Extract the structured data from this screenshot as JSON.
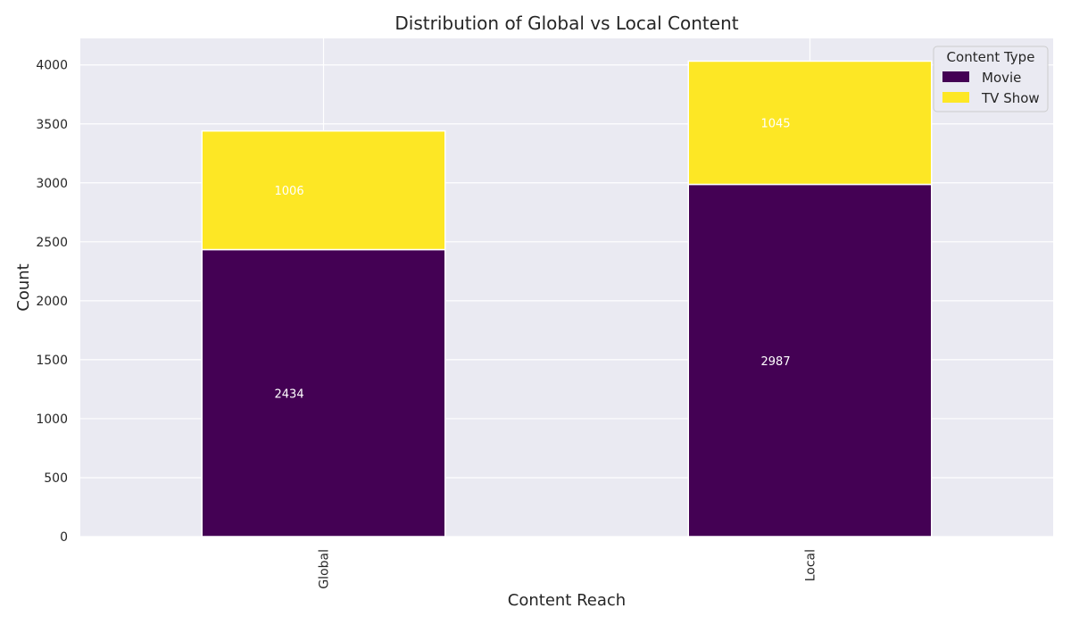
{
  "chart_data": {
    "type": "bar",
    "stacked": true,
    "title": "Distribution of Global vs Local Content",
    "xlabel": "Content Reach",
    "ylabel": "Count",
    "categories": [
      "Global",
      "Local"
    ],
    "series": [
      {
        "name": "Movie",
        "values": [
          2434,
          2987
        ],
        "color": "#440154"
      },
      {
        "name": "TV Show",
        "values": [
          1006,
          1045
        ],
        "color": "#fde725"
      }
    ],
    "ylim": [
      0,
      4225
    ],
    "yticks": [
      0,
      500,
      1000,
      1500,
      2000,
      2500,
      3000,
      3500,
      4000
    ],
    "grid": true,
    "legend": {
      "title": "Content Type",
      "placement": "top-right"
    },
    "background": "#eaeaf2",
    "grid_color": "#ffffff"
  }
}
